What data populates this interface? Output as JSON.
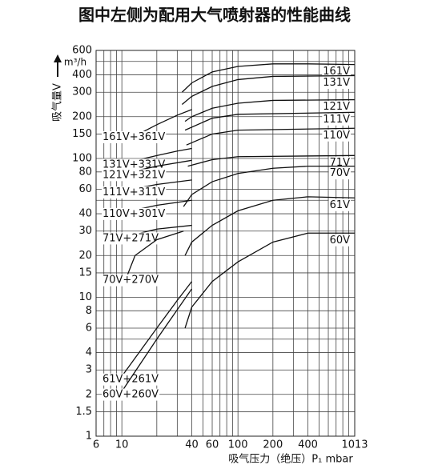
{
  "chart_data": {
    "type": "line",
    "title": "图中左侧为配用大气喷射器的性能曲线",
    "x_label": "吸气压力（绝压）P₁ mbar",
    "y_label": "吸气量V",
    "y_unit": "m³/h",
    "xscale": "log",
    "yscale": "log",
    "grid": true,
    "xlim": [
      6,
      1013
    ],
    "ylim": [
      1,
      600
    ],
    "xticks": [
      6,
      10,
      40,
      60,
      100,
      200,
      400,
      1013
    ],
    "yticks": [
      1,
      1.5,
      2,
      3,
      4,
      6,
      8,
      10,
      15,
      20,
      30,
      40,
      60,
      80,
      100,
      150,
      200,
      300,
      400,
      600
    ],
    "x_minor_grid": [
      7,
      8,
      9,
      20,
      30,
      50,
      70,
      80,
      90,
      300,
      500,
      600,
      700,
      800,
      900
    ],
    "y_minor_grid": [
      5,
      50,
      500
    ],
    "color": "#111111",
    "series": [
      {
        "name": "161V",
        "x": [
          33,
          40,
          60,
          100,
          200,
          400,
          1013
        ],
        "values": [
          300,
          350,
          420,
          460,
          480,
          480,
          475
        ]
      },
      {
        "name": "131V",
        "x": [
          33,
          40,
          60,
          100,
          200,
          1013
        ],
        "values": [
          245,
          280,
          330,
          370,
          390,
          395
        ]
      },
      {
        "name": "121V",
        "x": [
          35,
          40,
          60,
          100,
          200,
          1013
        ],
        "values": [
          185,
          200,
          230,
          250,
          262,
          265
        ]
      },
      {
        "name": "111V",
        "x": [
          35,
          60,
          100,
          1013
        ],
        "values": [
          160,
          195,
          208,
          215
        ]
      },
      {
        "name": "110V",
        "x": [
          36,
          60,
          100,
          1013
        ],
        "values": [
          125,
          150,
          160,
          165
        ]
      },
      {
        "name": "71V",
        "x": [
          37,
          60,
          100,
          1013
        ],
        "values": [
          88,
          98,
          103,
          105
        ]
      },
      {
        "name": "70V",
        "x": [
          34,
          40,
          60,
          100,
          200,
          400,
          1013
        ],
        "values": [
          45,
          55,
          68,
          78,
          85,
          88,
          88
        ]
      },
      {
        "name": "61V",
        "x": [
          35,
          40,
          60,
          100,
          200,
          400,
          1013
        ],
        "values": [
          20,
          25,
          33,
          42,
          50,
          53,
          52
        ]
      },
      {
        "name": "60V",
        "x": [
          35,
          40,
          60,
          100,
          200,
          400,
          1013
        ],
        "values": [
          6,
          8.5,
          13,
          18,
          25,
          29,
          29
        ]
      },
      {
        "name": "161V+361V",
        "x": [
          14,
          20,
          30,
          40
        ],
        "values": [
          150,
          175,
          205,
          225
        ]
      },
      {
        "name": "131V+331V",
        "x": [
          12,
          20,
          30,
          40
        ],
        "values": [
          95,
          105,
          113,
          118
        ]
      },
      {
        "name": "121V+321V",
        "x": [
          12,
          20,
          40
        ],
        "values": [
          80,
          88,
          97
        ]
      },
      {
        "name": "111V+311V",
        "x": [
          12,
          20,
          40
        ],
        "values": [
          60,
          65,
          70
        ]
      },
      {
        "name": "110V+301V",
        "x": [
          12,
          20,
          40
        ],
        "values": [
          42,
          46,
          50
        ]
      },
      {
        "name": "71V+271V",
        "x": [
          12,
          20,
          40
        ],
        "values": [
          28,
          31,
          33
        ]
      },
      {
        "name": "70V+270V",
        "x": [
          11,
          13,
          20,
          34
        ],
        "values": [
          14,
          20,
          26,
          30
        ]
      },
      {
        "name": "61V+261V",
        "x": [
          10,
          20,
          30,
          40
        ],
        "values": [
          2.7,
          6,
          9.5,
          13
        ]
      },
      {
        "name": "60V+260V",
        "x": [
          10,
          20,
          40
        ],
        "values": [
          2.1,
          5,
          11.5
        ]
      }
    ]
  }
}
